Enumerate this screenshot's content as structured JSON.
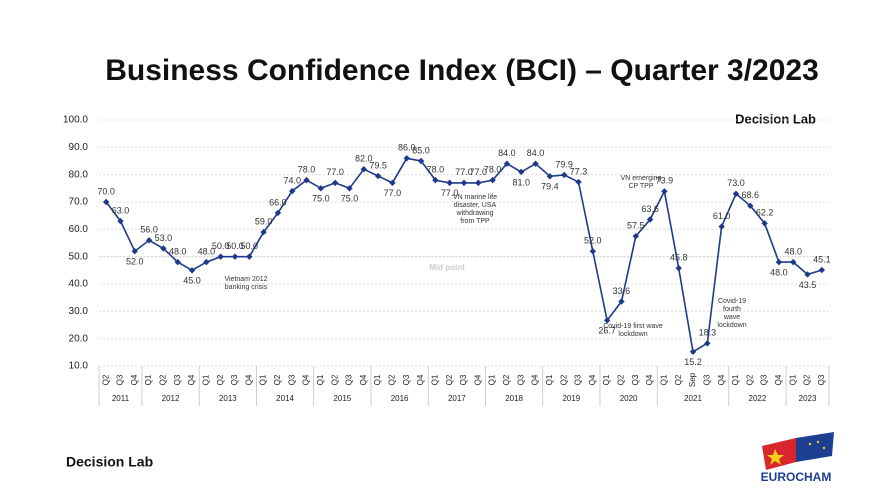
{
  "chart_data": {
    "type": "line",
    "title": "Business Confidence Index (BCI) – Quarter 3/2023",
    "brand": "Decision Lab",
    "footer_brand": "Decision Lab",
    "logo": "EUROCHAM",
    "categories": [
      "Q2",
      "Q3",
      "Q4",
      "Q1",
      "Q2",
      "Q3",
      "Q4",
      "Q1",
      "Q2",
      "Q3",
      "Q4",
      "Q1",
      "Q2",
      "Q3",
      "Q4",
      "Q1",
      "Q2",
      "Q3",
      "Q4",
      "Q1",
      "Q2",
      "Q3",
      "Q4",
      "Q1",
      "Q2",
      "Q3",
      "Q4",
      "Q1",
      "Q2",
      "Q3",
      "Q4",
      "Q1",
      "Q2",
      "Q3",
      "Q4",
      "Q1",
      "Q2",
      "Q3",
      "Q4",
      "Q1",
      "Q2",
      "Sep",
      "Q3",
      "Q4",
      "Q1",
      "Q2",
      "Q3",
      "Q4",
      "Q1",
      "Q2",
      "Q3"
    ],
    "years": [
      "2011",
      "2012",
      "2013",
      "2014",
      "2015",
      "2016",
      "2017",
      "2018",
      "2019",
      "2020",
      "2021",
      "2022",
      "2023"
    ],
    "series": [
      {
        "name": "BCI",
        "color": "#1f3a8a",
        "values": [
          70,
          63,
          52,
          56,
          53,
          48,
          45,
          48,
          50,
          50,
          50,
          59,
          66,
          74,
          78,
          75,
          77,
          75,
          82,
          79.5,
          77,
          86,
          85,
          78,
          77,
          77,
          77,
          78,
          84,
          81,
          84,
          79.4,
          79.9,
          77.3,
          52,
          26.7,
          33.6,
          57.5,
          63.6,
          73.9,
          45.8,
          15.2,
          18.3,
          61,
          73,
          68.6,
          62.2,
          48,
          48,
          43.5,
          45.1
        ],
        "value_labels": [
          "70.0",
          "63.0",
          "52.0",
          "56.0",
          "53.0",
          "48.0",
          "45.0",
          "48.0",
          "50.0",
          "50.0",
          "50.0",
          "59.0",
          "66.0",
          "74.0",
          "78.0",
          "75.0",
          "77.0",
          "75.0",
          "82.0",
          "79.5",
          "77.0",
          "86.0",
          "85.0",
          "78.0",
          "77.0",
          "77.0",
          "77.0",
          "78.0",
          "84.0",
          "81.0",
          "84.0",
          "79.4",
          "79.9",
          "77.3",
          "52.0",
          "26.7",
          "33.6",
          "57.5",
          "63.6",
          "73.9",
          "45.8",
          "15.2",
          "18.3",
          "61.0",
          "73.0",
          "68.6",
          "62.2",
          "48.0",
          "48.0",
          "43.5",
          "45.1"
        ]
      }
    ],
    "ylim": [
      10,
      100
    ],
    "yticks": [
      {
        "value": 10,
        "label": "10.0"
      },
      {
        "value": 20,
        "label": "20.0"
      },
      {
        "value": 30,
        "label": "30.0"
      },
      {
        "value": 40,
        "label": "40.0"
      },
      {
        "value": 50,
        "label": "50.0"
      },
      {
        "value": 60,
        "label": "60.0"
      },
      {
        "value": 70,
        "label": "70.0"
      },
      {
        "value": 80,
        "label": "80.0"
      },
      {
        "value": 90,
        "label": "90.0"
      },
      {
        "value": 100,
        "label": "100.0"
      }
    ],
    "grid": true,
    "reference_line": {
      "value": 50,
      "label": "Mid point"
    },
    "annotations": [
      {
        "lines": [
          "Vietnam 2012",
          "banking crisis"
        ]
      },
      {
        "lines": [
          "VN marine life",
          "disaster, USA",
          "withdrawing",
          "from TPP"
        ]
      },
      {
        "lines": [
          "VN emerging",
          "CP TPP"
        ]
      },
      {
        "lines": [
          "Covid-19 first wave",
          "lockdown"
        ]
      },
      {
        "lines": [
          "Covid-19",
          "fourth",
          "wave",
          "lockdown"
        ]
      }
    ]
  }
}
